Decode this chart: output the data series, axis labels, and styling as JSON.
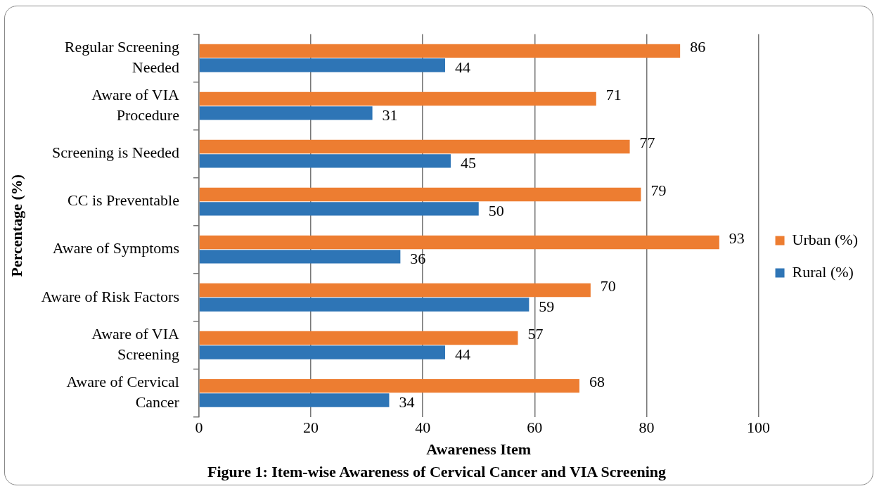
{
  "chart_data": {
    "type": "bar",
    "orientation": "horizontal",
    "title": "Figure 1: Item-wise Awareness of Cervical Cancer and VIA Screening",
    "xlabel": "Awareness Item",
    "ylabel": "Percentage (%)",
    "categories": [
      "Regular Screening Needed",
      "Aware of VIA Procedure",
      "Screening is Needed",
      "CC is Preventable",
      "Aware of Symptoms",
      "Aware of Risk Factors",
      "Aware of VIA Screening",
      "Aware of Cervical Cancer"
    ],
    "series": [
      {
        "name": "Urban (%)",
        "color": "#ed7d31",
        "values": [
          86,
          71,
          77,
          79,
          93,
          70,
          57,
          68
        ]
      },
      {
        "name": "Rural (%)",
        "color": "#2e75b6",
        "values": [
          44,
          31,
          45,
          50,
          36,
          59,
          44,
          34
        ]
      }
    ],
    "xlim": [
      0,
      100
    ],
    "xticks": [
      0,
      20,
      40,
      60,
      80,
      100
    ],
    "grid": "x",
    "legend": "right",
    "data_labels": true
  }
}
